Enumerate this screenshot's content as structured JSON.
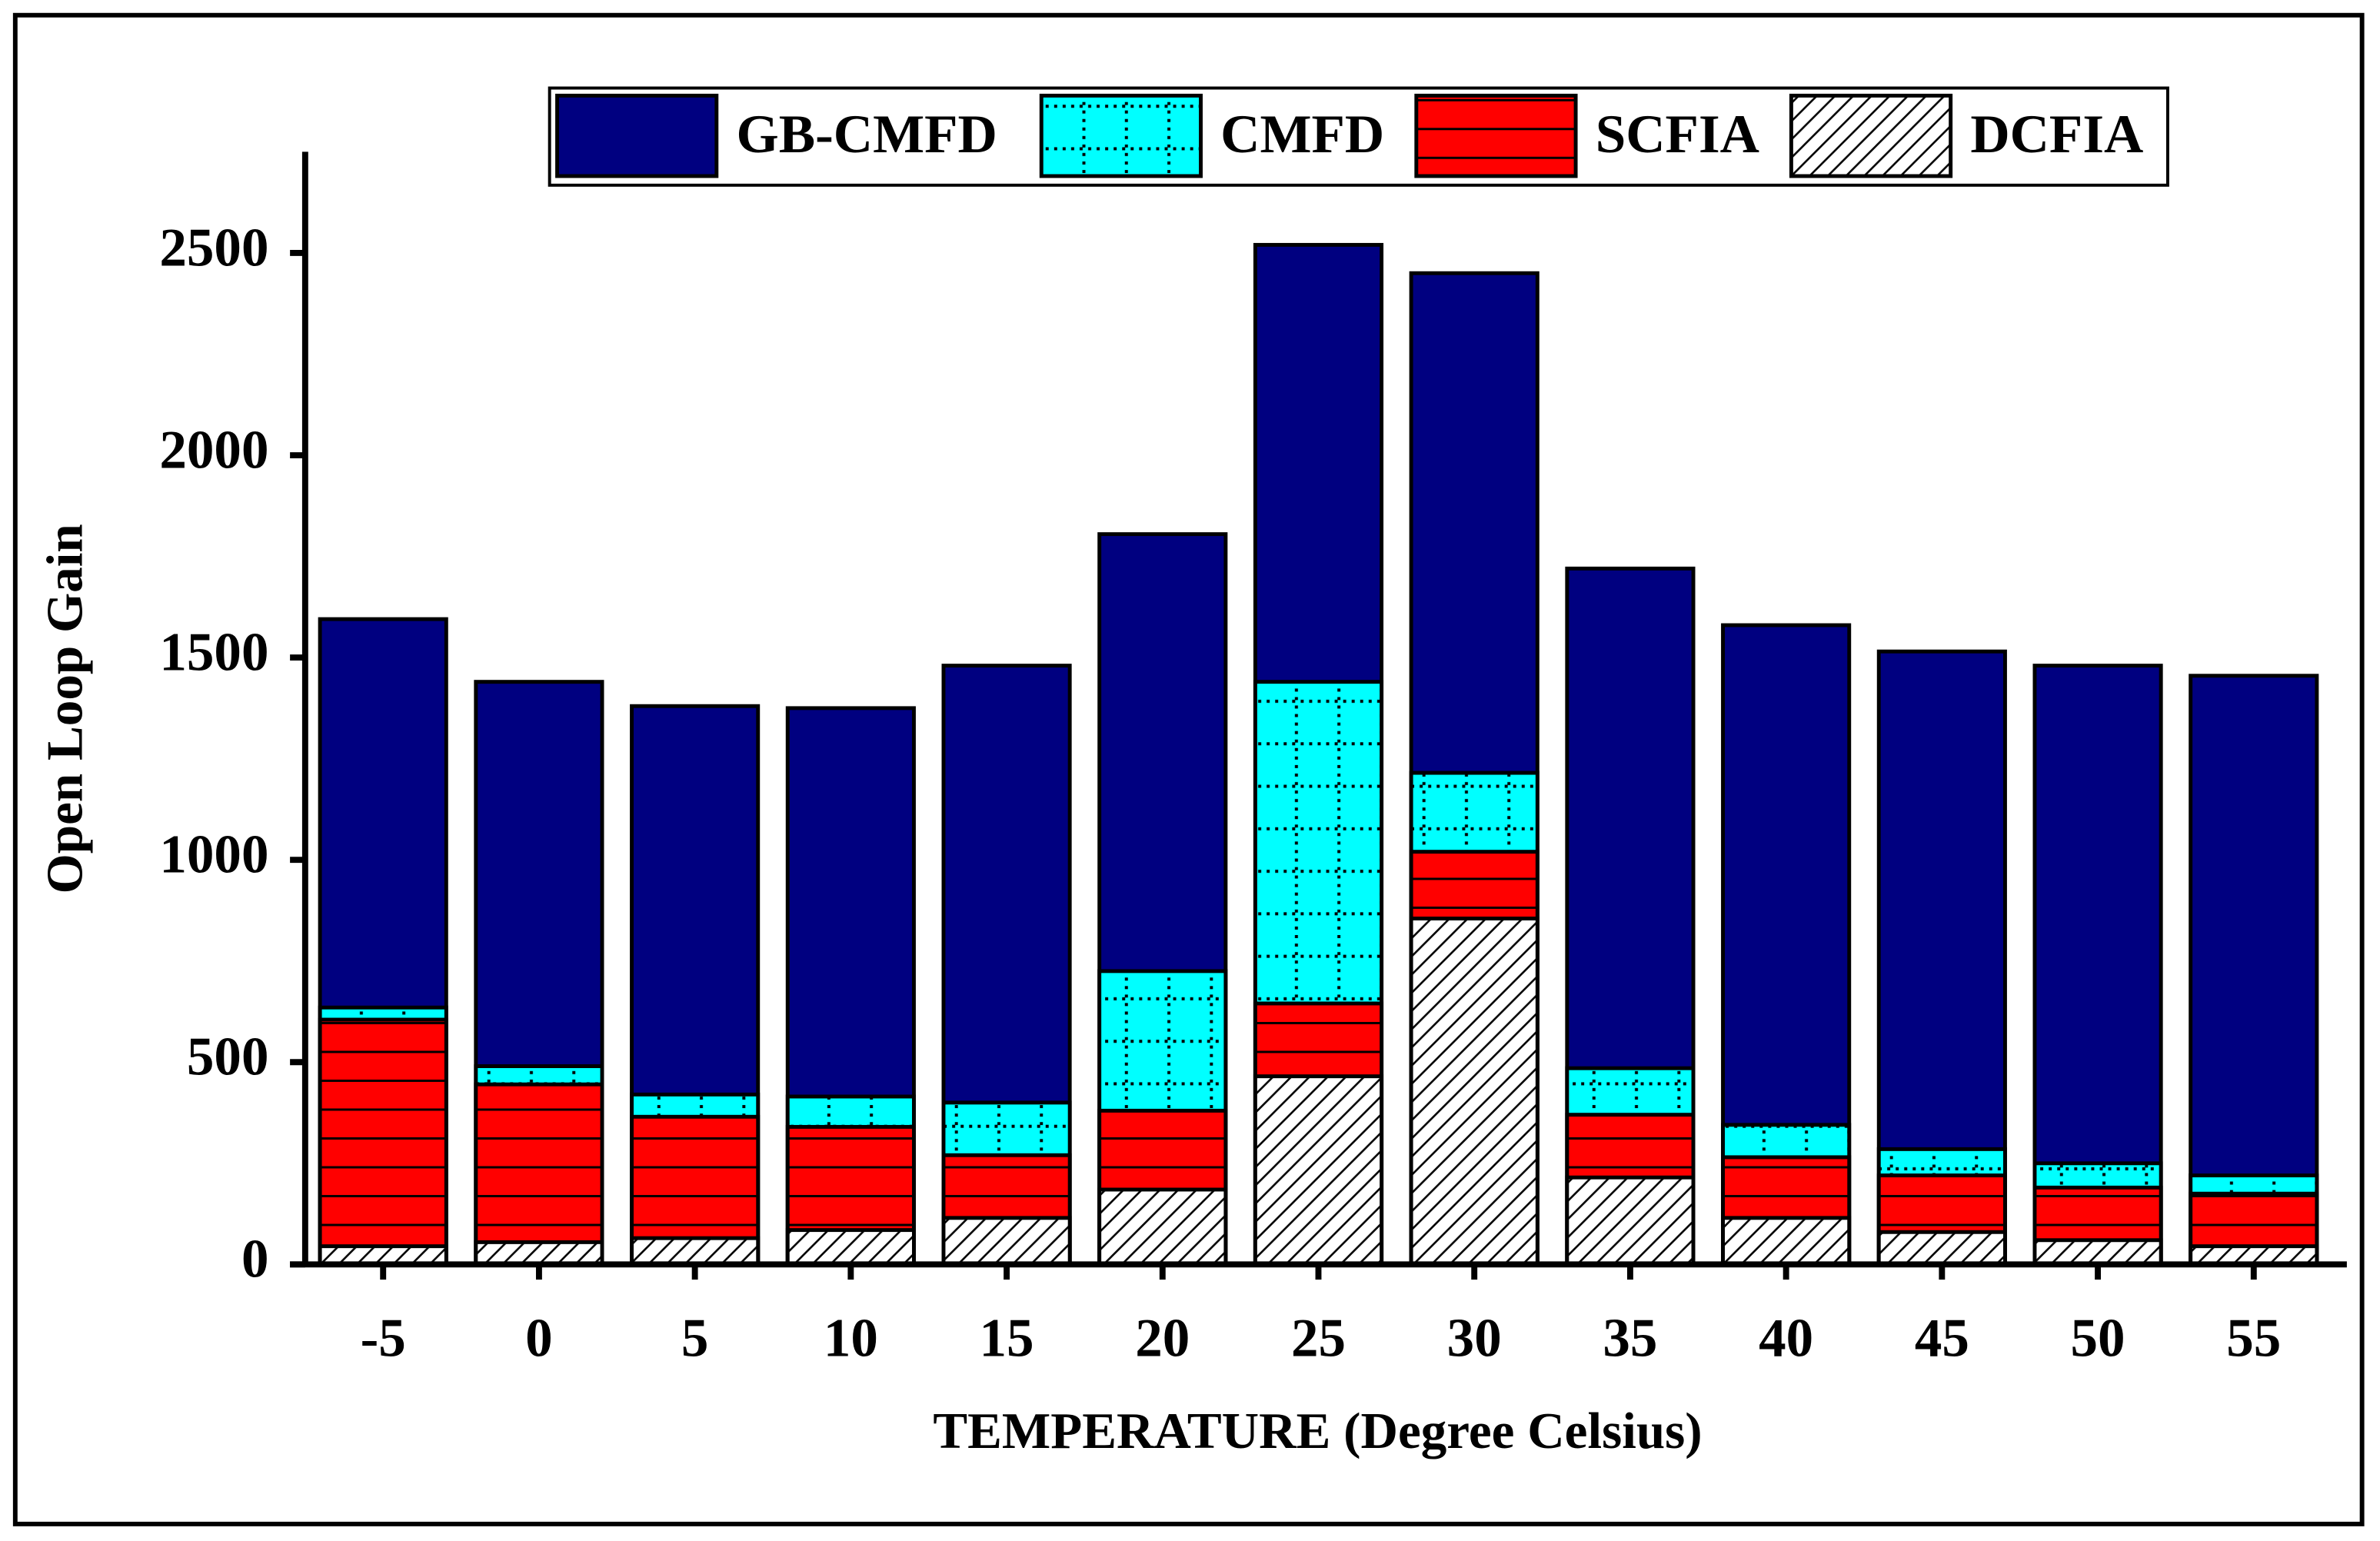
{
  "chart_data": {
    "type": "bar",
    "bar_mode": "overlap",
    "x_label": "TEMPERATURE (Degree Celsius)",
    "y_label": "Open Loop Gain",
    "categories": [
      "-5",
      "0",
      "5",
      "10",
      "15",
      "20",
      "25",
      "30",
      "35",
      "40",
      "45",
      "50",
      "55"
    ],
    "series": [
      {
        "name": "GB-CMFD",
        "color": "#000080",
        "pattern": "none",
        "values": [
          1595,
          1440,
          1380,
          1375,
          1480,
          1805,
          2520,
          2450,
          1720,
          1580,
          1515,
          1480,
          1455
        ]
      },
      {
        "name": "CMFD",
        "color": "#00ffff",
        "pattern": "dotted-grid",
        "values": [
          635,
          490,
          420,
          415,
          400,
          725,
          1440,
          1215,
          485,
          345,
          285,
          250,
          220
        ]
      },
      {
        "name": "SCFIA",
        "color": "#ff0000",
        "pattern": "horizontal-lines",
        "values": [
          605,
          445,
          365,
          340,
          270,
          380,
          645,
          1020,
          370,
          265,
          220,
          190,
          175
        ]
      },
      {
        "name": "DCFIA",
        "color": "#ffffff",
        "pattern": "diagonal-hatch",
        "values": [
          45,
          55,
          65,
          85,
          115,
          185,
          465,
          855,
          215,
          115,
          80,
          60,
          45
        ]
      }
    ],
    "ylim": [
      0,
      2750
    ],
    "yticks": [
      0,
      500,
      1000,
      1500,
      2000,
      2500
    ],
    "grid": false,
    "legend_position": "top"
  }
}
